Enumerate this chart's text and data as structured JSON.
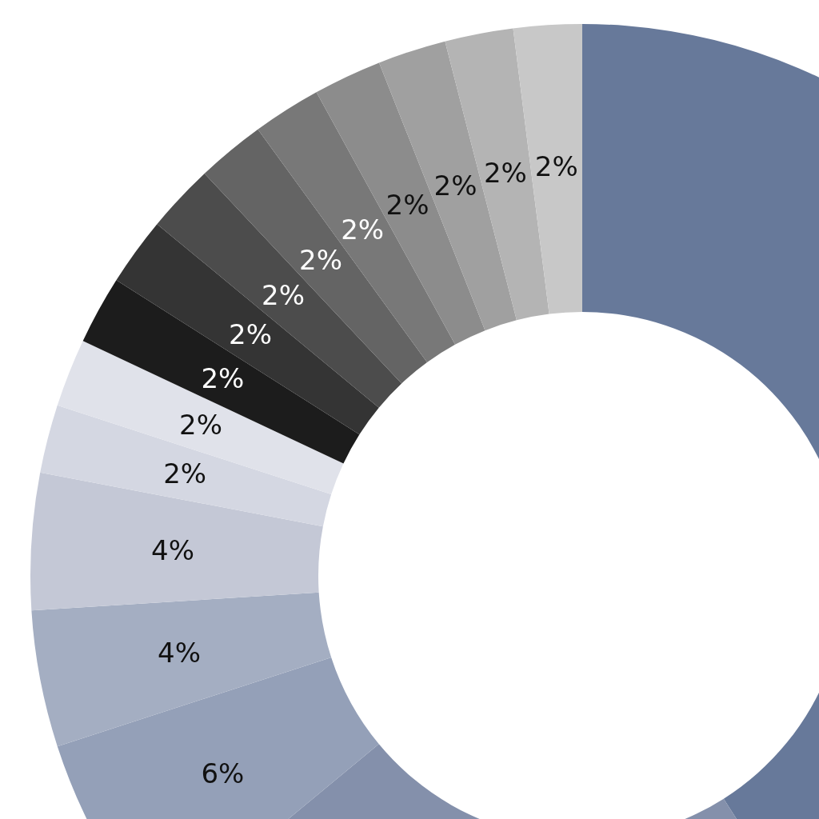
{
  "chart_data": {
    "type": "donut",
    "categories": [
      null,
      null,
      null,
      null,
      null,
      null,
      null,
      null,
      null,
      null,
      null,
      null,
      null,
      null,
      null,
      null
    ],
    "values": [
      41,
      23,
      6,
      4,
      4,
      2,
      2,
      2,
      2,
      2,
      2,
      2,
      2,
      2,
      2,
      2
    ],
    "colors": [
      "#67799a",
      "#8490ab",
      "#94a0b8",
      "#a4aec2",
      "#c4c8d6",
      "#d4d7e2",
      "#e0e2ea",
      "#1c1c1c",
      "#343434",
      "#4c4c4c",
      "#646464",
      "#787878",
      "#8c8c8c",
      "#a0a0a0",
      "#b4b4b4",
      "#c8c8c8"
    ],
    "value_labels": [
      null,
      null,
      "6%",
      "4%",
      "4%",
      "2%",
      "2%",
      "2%",
      "2%",
      "2%",
      "2%",
      "2%",
      "2%",
      "2%",
      "2%",
      "2%"
    ]
  }
}
